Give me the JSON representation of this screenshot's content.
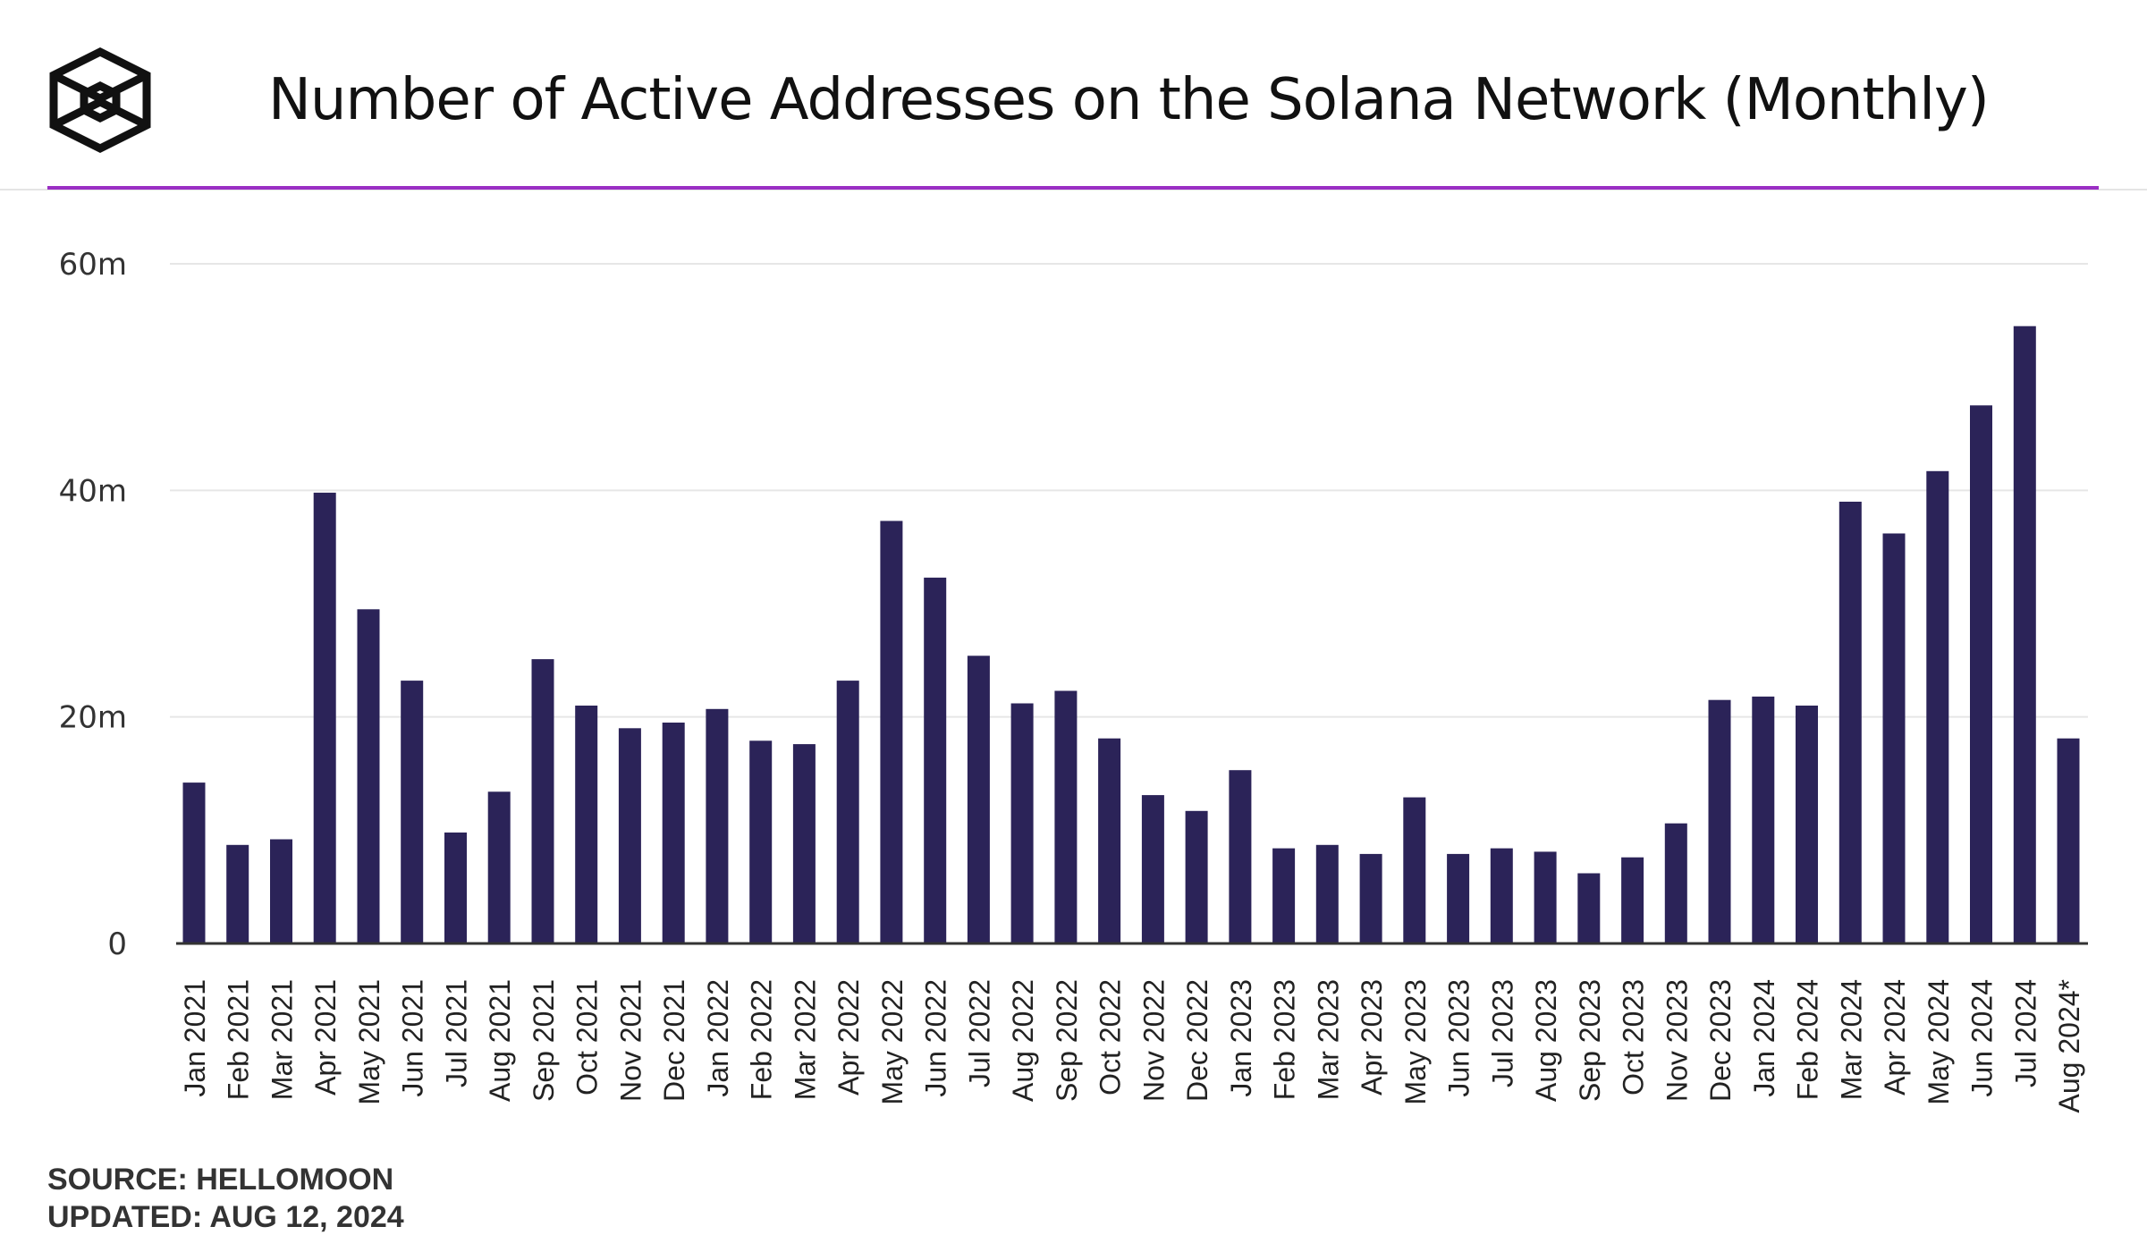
{
  "header": {
    "title": "Number of Active Addresses on the Solana Network (Monthly)",
    "logo_icon": "cube-logo-icon"
  },
  "colors": {
    "bar": "#2b2358",
    "accent_line": "#9a2ec4",
    "grid": "#e6e6e6",
    "axis": "#333333"
  },
  "chart_data": {
    "type": "bar",
    "title": "Number of Active Addresses on the Solana Network (Monthly)",
    "xlabel": "",
    "ylabel": "",
    "ylim": [
      0,
      60000000
    ],
    "yticks": [
      0,
      20000000,
      40000000,
      60000000
    ],
    "ytick_labels": [
      "0",
      "20m",
      "40m",
      "60m"
    ],
    "grid": true,
    "legend": "none",
    "categories": [
      "Jan 2021",
      "Feb 2021",
      "Mar 2021",
      "Apr 2021",
      "May 2021",
      "Jun 2021",
      "Jul 2021",
      "Aug 2021",
      "Sep 2021",
      "Oct 2021",
      "Nov 2021",
      "Dec 2021",
      "Jan 2022",
      "Feb 2022",
      "Mar 2022",
      "Apr 2022",
      "May 2022",
      "Jun 2022",
      "Jul 2022",
      "Aug 2022",
      "Sep 2022",
      "Oct 2022",
      "Nov 2022",
      "Dec 2022",
      "Jan 2023",
      "Feb 2023",
      "Mar 2023",
      "Apr 2023",
      "May 2023",
      "Jun 2023",
      "Jul 2023",
      "Aug 2023",
      "Sep 2023",
      "Oct 2023",
      "Nov 2023",
      "Dec 2023",
      "Jan 2024",
      "Feb 2024",
      "Mar 2024",
      "Apr 2024",
      "May 2024",
      "Jun 2024",
      "Jul 2024",
      "Aug 2024*"
    ],
    "values": [
      14200000,
      8700000,
      9200000,
      39800000,
      29500000,
      23200000,
      9800000,
      13400000,
      25100000,
      21000000,
      19000000,
      19500000,
      20700000,
      17900000,
      17600000,
      23200000,
      37300000,
      32300000,
      25400000,
      21200000,
      22300000,
      18100000,
      13100000,
      11700000,
      15300000,
      8400000,
      8700000,
      7900000,
      12900000,
      7900000,
      8400000,
      8100000,
      6200000,
      7600000,
      10600000,
      21500000,
      21800000,
      21000000,
      39000000,
      36200000,
      41700000,
      47500000,
      54500000,
      18100000
    ]
  },
  "footer": {
    "source": "SOURCE: HELLOMOON",
    "updated": "UPDATED: AUG 12, 2024"
  }
}
